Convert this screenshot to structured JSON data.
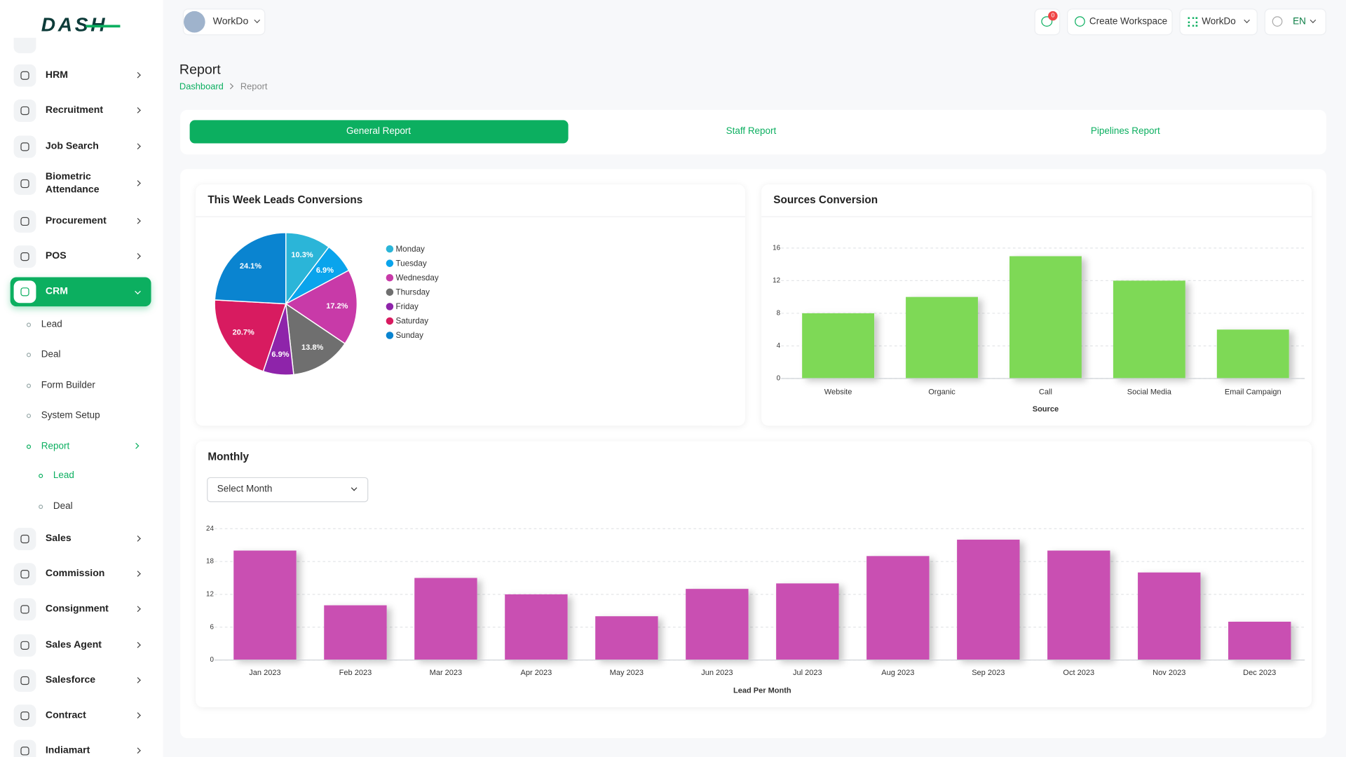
{
  "header": {
    "logo": "DASH",
    "workspace": "WorkDo",
    "notifications": 0,
    "create_workspace": "Create Workspace",
    "user_workspace": "WorkDo",
    "language": "EN"
  },
  "sidebar": {
    "menu_before": [
      "HRM",
      "Recruitment",
      "Job Search",
      "Biometric Attendance",
      "Procurement",
      "POS"
    ],
    "active": "CRM",
    "crm_items": [
      "Lead",
      "Deal",
      "Form Builder",
      "System Setup",
      "Report"
    ],
    "report_items": [
      "Lead",
      "Deal"
    ],
    "menu_after": [
      "Sales",
      "Commission",
      "Consignment",
      "Sales Agent",
      "Salesforce",
      "Contract",
      "Indiamart"
    ]
  },
  "page": {
    "title": "Report",
    "breadcrumb": [
      "Dashboard",
      "Report"
    ],
    "tabs": [
      "General Report",
      "Staff Report",
      "Pipelines Report"
    ],
    "month_select": "Select Month"
  },
  "chart_data": [
    {
      "type": "pie",
      "title": "This Week Leads Conversions",
      "categories": [
        "Monday",
        "Tuesday",
        "Wednesday",
        "Thursday",
        "Friday",
        "Saturday",
        "Sunday"
      ],
      "values": [
        10.3,
        6.9,
        17.2,
        13.8,
        6.9,
        20.7,
        24.1
      ],
      "value_labels": [
        "10.3%",
        "6.9%",
        "17.2%",
        "13.8%",
        "6.9%",
        "20.7%",
        "24.1%"
      ],
      "colors": [
        "#2bb5d8",
        "#0aa4ec",
        "#c83aa8",
        "#6f6f6f",
        "#8e24aa",
        "#d81b60",
        "#0a84d0"
      ],
      "legend": "right"
    },
    {
      "type": "bar",
      "title": "Sources Conversion",
      "categories": [
        "Website",
        "Organic",
        "Call",
        "Social Media",
        "Email Campaign"
      ],
      "values": [
        8,
        10,
        15,
        12,
        6
      ],
      "color": "#7ed957",
      "ylim": [
        0,
        16
      ],
      "yticks": [
        0,
        4,
        8,
        12,
        16
      ],
      "grid": true,
      "x_label": "Source"
    },
    {
      "type": "bar",
      "title": "Monthly",
      "categories": [
        "Jan 2023",
        "Feb 2023",
        "Mar 2023",
        "Apr 2023",
        "May 2023",
        "Jun 2023",
        "Jul 2023",
        "Aug 2023",
        "Sep 2023",
        "Oct 2023",
        "Nov 2023",
        "Dec 2023"
      ],
      "values": [
        20,
        10,
        15,
        12,
        8,
        13,
        14,
        19,
        22,
        20,
        16,
        7
      ],
      "color": "#c94fb2",
      "ylim": [
        0,
        24
      ],
      "yticks": [
        0,
        6,
        12,
        18,
        24
      ],
      "grid": true,
      "x_label": "Lead Per Month"
    }
  ]
}
